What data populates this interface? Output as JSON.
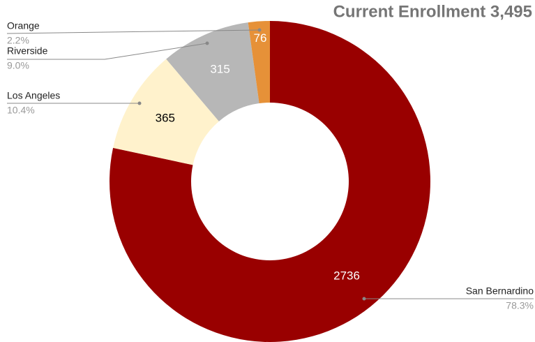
{
  "chart_data": {
    "type": "donut",
    "title": "Current Enrollment 3,495",
    "categories": [
      "San Bernardino",
      "Los Angeles",
      "Riverside",
      "Orange"
    ],
    "values": [
      2736,
      365,
      315,
      76
    ],
    "percent_labels": [
      "78.3%",
      "10.4%",
      "9.0%",
      "2.2%"
    ],
    "colors": [
      "#990000",
      "#fff2cc",
      "#b7b7b7",
      "#e69138"
    ]
  }
}
